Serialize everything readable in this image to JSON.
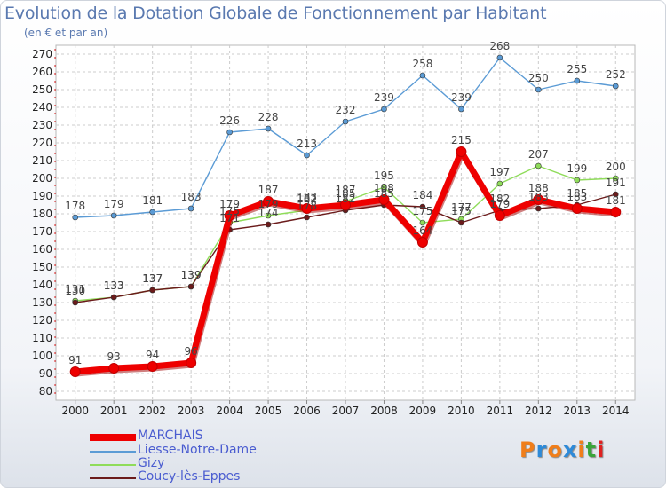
{
  "title": "Evolution de la Dotation Globale de Fonctionnement par Habitant",
  "subtitle": "(en € et par an)",
  "logo": "Proxiti",
  "colors": {
    "MARCHAIS": "#ee0000",
    "Liesse-Notre-Dame": "#5b9bd5",
    "Gizy": "#8fdc5a",
    "Coucy-lès-Eppes": "#6b1b1b",
    "legend_text": "#4a5cd0",
    "title": "#5a79b0"
  },
  "chart_data": {
    "type": "line",
    "title": "Evolution de la Dotation Globale de Fonctionnement par Habitant",
    "xlabel": "",
    "ylabel": "",
    "ylim": [
      80,
      270
    ],
    "yticks": [
      80,
      90,
      100,
      110,
      120,
      130,
      140,
      150,
      160,
      170,
      180,
      190,
      200,
      210,
      220,
      230,
      240,
      250,
      260,
      270
    ],
    "grid": true,
    "legend": "bottom-left",
    "x": [
      "2000",
      "2001",
      "2002",
      "2003",
      "2004",
      "2005",
      "2006",
      "2007",
      "2008",
      "2009",
      "2010",
      "2011",
      "2012",
      "2013",
      "2014"
    ],
    "series": [
      {
        "name": "MARCHAIS",
        "values": [
          91,
          93,
          94,
          96,
          179,
          187,
          183,
          185,
          188,
          164,
          215,
          179,
          188,
          183,
          181
        ]
      },
      {
        "name": "Liesse-Notre-Dame",
        "values": [
          178,
          179,
          181,
          183,
          226,
          228,
          213,
          232,
          239,
          258,
          239,
          268,
          250,
          255,
          252
        ]
      },
      {
        "name": "Gizy",
        "values": [
          131,
          133,
          137,
          139,
          175,
          179,
          182,
          187,
          195,
          175,
          177,
          197,
          207,
          199,
          200
        ]
      },
      {
        "name": "Coucy-lès-Eppes",
        "values": [
          130,
          133,
          137,
          139,
          171,
          174,
          178,
          182,
          185,
          184,
          175,
          182,
          183,
          185,
          191
        ]
      }
    ],
    "data_labels": [
      [
        "91",
        "93",
        "94",
        "96",
        "179",
        "187",
        "183",
        "185",
        "188",
        "164",
        "215",
        "179",
        "188",
        "183",
        "181"
      ],
      [
        "178",
        "179",
        "181",
        "183",
        "226",
        "228",
        "213",
        "232",
        "239",
        "258",
        "239",
        "268",
        "250",
        "255",
        "252"
      ],
      [
        "131",
        "133",
        "137",
        "139",
        "175",
        "179",
        "182",
        "187",
        "195",
        "175",
        "177",
        "197",
        "207",
        "199",
        "200"
      ],
      [
        "130",
        "133",
        "137",
        "139",
        "171",
        "174",
        "178",
        "182",
        "185",
        "184",
        "175",
        "182",
        "183",
        "185",
        "191"
      ]
    ]
  }
}
